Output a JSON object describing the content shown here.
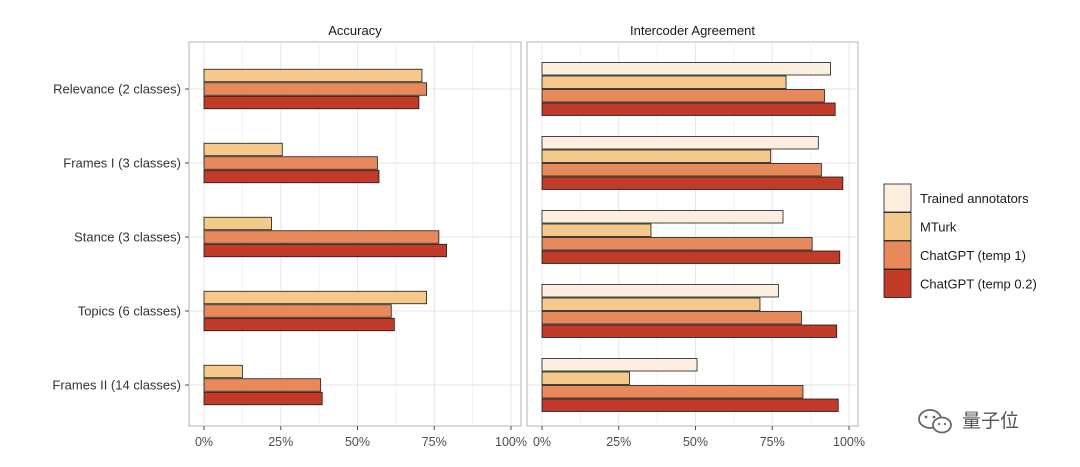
{
  "chart_data": {
    "type": "bar",
    "orientation": "horizontal",
    "categories": [
      "Relevance (2 classes)",
      "Frames I (3 classes)",
      "Stance (3 classes)",
      "Topics (6 classes)",
      "Frames II (14 classes)"
    ],
    "x_ticks": [
      "0%",
      "25%",
      "50%",
      "75%",
      "100%"
    ],
    "xlim": [
      0,
      100
    ],
    "panels": [
      {
        "title": "Accuracy",
        "series": [
          {
            "name": "MTurk",
            "values": [
              71,
              25.5,
              22,
              72.5,
              12.5
            ]
          },
          {
            "name": "ChatGPT (temp 1)",
            "values": [
              72.5,
              56.5,
              76.5,
              61,
              38
            ]
          },
          {
            "name": "ChatGPT (temp 0.2)",
            "values": [
              70,
              57,
              79,
              62,
              38.5
            ]
          }
        ]
      },
      {
        "title": "Intercoder Agreement",
        "series": [
          {
            "name": "Trained annotators",
            "values": [
              94,
              90,
              78.5,
              77,
              50.5
            ]
          },
          {
            "name": "MTurk",
            "values": [
              79.5,
              74.5,
              35.5,
              71,
              28.5
            ]
          },
          {
            "name": "ChatGPT (temp 1)",
            "values": [
              92,
              91,
              88,
              84.5,
              85
            ]
          },
          {
            "name": "ChatGPT (temp 0.2)",
            "values": [
              95.5,
              98,
              97,
              96,
              96.5
            ]
          }
        ]
      }
    ],
    "legend": {
      "position": "right",
      "items": [
        {
          "name": "Trained annotators",
          "color": "#fcefdf"
        },
        {
          "name": "MTurk",
          "color": "#f5c98b"
        },
        {
          "name": "ChatGPT (temp 1)",
          "color": "#e8895c"
        },
        {
          "name": "ChatGPT (temp 0.2)",
          "color": "#c23b28"
        }
      ]
    }
  },
  "watermark": {
    "text": "量子位",
    "icon": "wechat-icon"
  }
}
